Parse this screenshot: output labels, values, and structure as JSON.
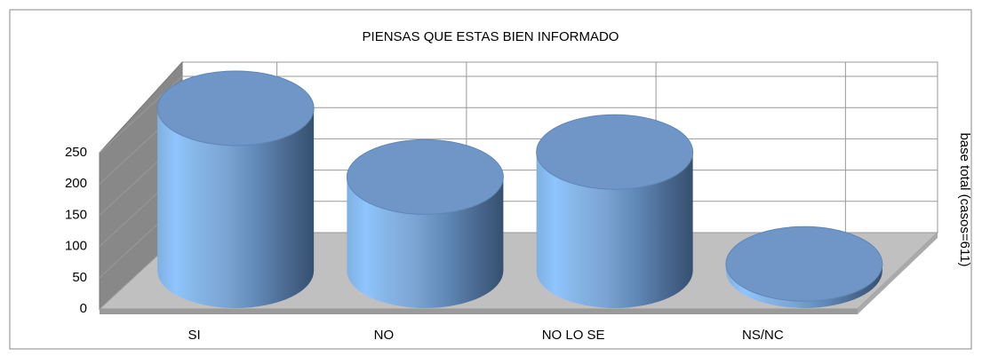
{
  "chart_data": {
    "type": "bar3d",
    "title": "PIENSAS QUE ESTAS BIEN INFORMADO",
    "y_label": "base total (casos=611)",
    "categories": [
      "SI",
      "NO",
      "NO LO SE",
      "NS/NC"
    ],
    "values": [
      260,
      150,
      190,
      11
    ],
    "color": "#6f9ad0",
    "ylim": [
      0,
      250
    ],
    "yticks": [
      0,
      50,
      100,
      150,
      200,
      250
    ],
    "grid": true
  }
}
